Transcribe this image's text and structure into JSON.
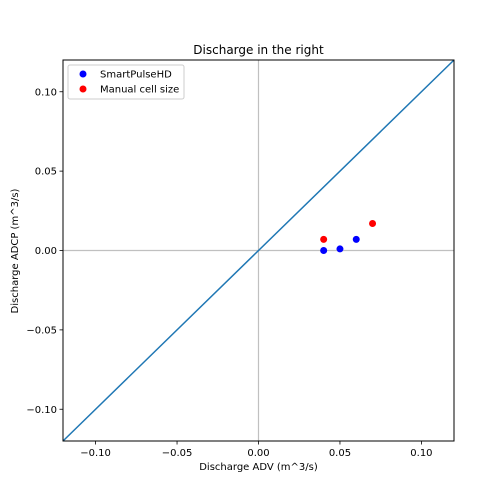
{
  "chart_data": {
    "type": "scatter",
    "title": "Discharge in the right",
    "xlabel": "Discharge ADV (m^3/s)",
    "ylabel": "Discharge ADCP (m^3/s)",
    "xlim": [
      -0.12,
      0.12
    ],
    "ylim": [
      -0.12,
      0.12
    ],
    "xticks": [
      -0.1,
      -0.05,
      0.0,
      0.05,
      0.1
    ],
    "yticks": [
      -0.1,
      -0.05,
      0.0,
      0.05,
      0.1
    ],
    "xtick_labels": [
      "−0.10",
      "−0.05",
      "0.00",
      "0.05",
      "0.10"
    ],
    "ytick_labels": [
      "−0.10",
      "−0.05",
      "0.00",
      "0.05",
      "0.10"
    ],
    "grid": false,
    "legend_position": "top-left",
    "reference_lines": {
      "identity": {
        "color": "#1f77b4"
      },
      "zero_axes": {
        "color": "#c0c0c0"
      }
    },
    "series": [
      {
        "name": "SmartPulseHD",
        "color": "#0000ff",
        "points": [
          [
            0.04,
            0.0
          ],
          [
            0.05,
            0.001
          ],
          [
            0.06,
            0.007
          ]
        ]
      },
      {
        "name": "Manual cell size",
        "color": "#ff0000",
        "points": [
          [
            0.04,
            0.007
          ],
          [
            0.07,
            0.017
          ]
        ]
      }
    ]
  }
}
